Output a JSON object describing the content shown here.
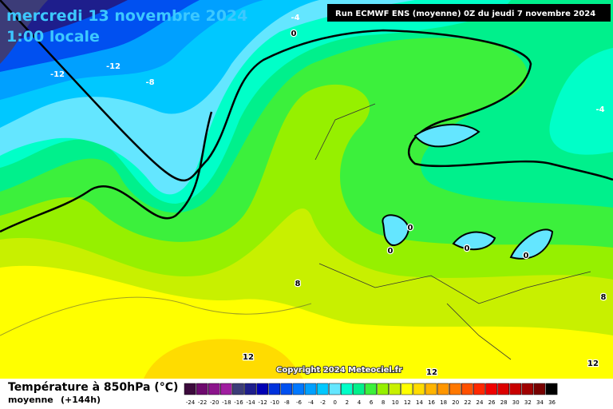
{
  "header": {
    "title": "mercredi 13 novembre 2024",
    "time": "1:00 locale",
    "run": "Run ECMWF ENS (moyenne) 0Z du jeudi 7 novembre 2024"
  },
  "map": {
    "contour_labels": [
      -4,
      0,
      -12,
      -12,
      -8,
      -4,
      0,
      0,
      0,
      0,
      8,
      8,
      12,
      12,
      12
    ],
    "copyright": "Copyright 2024 Meteociel.fr"
  },
  "legend": {
    "title": "Température à 850hPa (°C)",
    "subtitle": "moyenne",
    "lead": "(+144h)",
    "ticks": [
      -24,
      -22,
      -20,
      -18,
      -16,
      -14,
      -12,
      -10,
      -8,
      -6,
      -4,
      -2,
      0,
      2,
      4,
      6,
      8,
      10,
      12,
      14,
      16,
      18,
      20,
      22,
      24,
      26,
      28,
      30,
      32,
      34,
      36
    ],
    "colors": [
      "#3c0a3c",
      "#6e0a6e",
      "#8c148c",
      "#a01ea0",
      "#3c3c78",
      "#1e1e8c",
      "#0000b4",
      "#0032dc",
      "#0050f0",
      "#0078ff",
      "#00a0ff",
      "#00c8ff",
      "#64e6ff",
      "#00ffc8",
      "#00f08c",
      "#3cf03c",
      "#96f000",
      "#c8f000",
      "#ffff00",
      "#ffdc00",
      "#ffb400",
      "#ff9600",
      "#ff7800",
      "#ff5000",
      "#ff2800",
      "#f00000",
      "#dc0000",
      "#c80000",
      "#a00000",
      "#780000",
      "#000000"
    ]
  }
}
